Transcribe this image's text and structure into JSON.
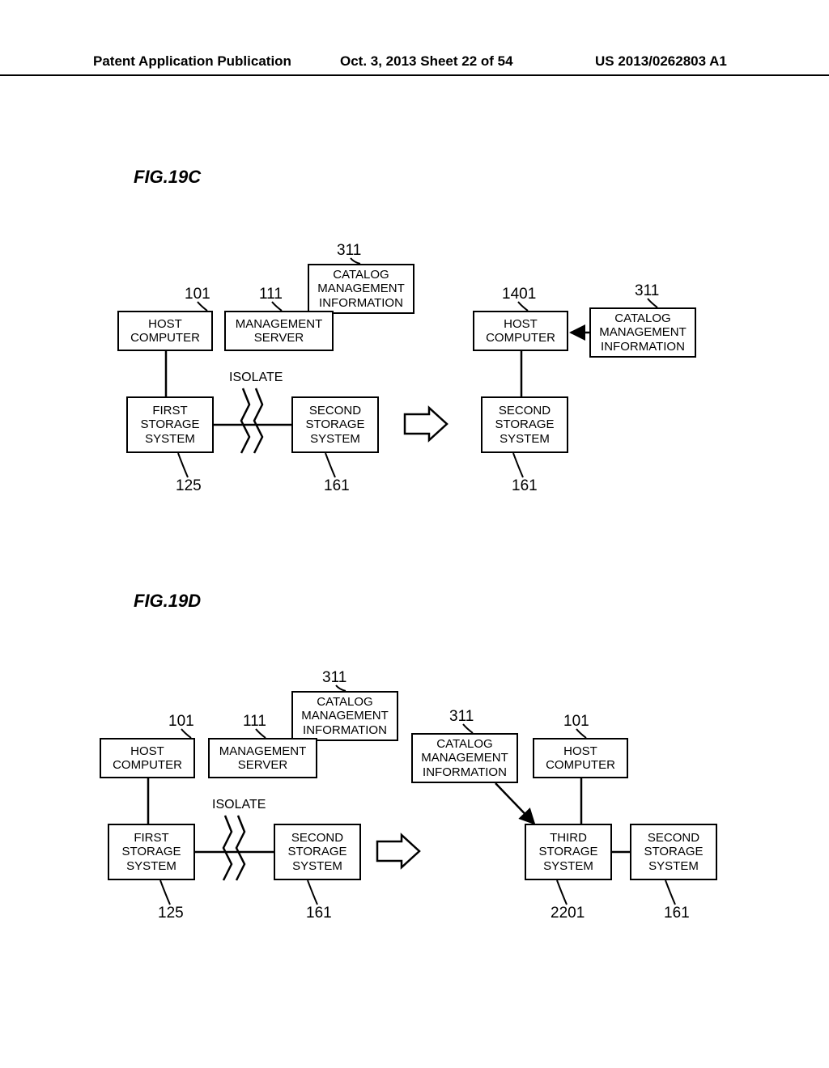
{
  "header": {
    "left": "Patent Application Publication",
    "center": "Oct. 3, 2013  Sheet 22 of 54",
    "right": "US 2013/0262803 A1"
  },
  "fig19c": {
    "title": "FIG.19C",
    "isolate_label": "ISOLATE",
    "boxes": {
      "host_l": "HOST\nCOMPUTER",
      "mgmt_server": "MANAGEMENT\nSERVER",
      "catalog_l": "CATALOG\nMANAGEMENT\nINFORMATION",
      "first_storage": "FIRST\nSTORAGE\nSYSTEM",
      "second_storage_l": "SECOND\nSTORAGE\nSYSTEM",
      "host_r": "HOST\nCOMPUTER",
      "catalog_r": "CATALOG\nMANAGEMENT\nINFORMATION",
      "second_storage_r": "SECOND\nSTORAGE\nSYSTEM"
    },
    "refs": {
      "r101": "101",
      "r111": "111",
      "r311l": "311",
      "r1401": "1401",
      "r311r": "311",
      "r125": "125",
      "r161l": "161",
      "r161r": "161"
    }
  },
  "fig19d": {
    "title": "FIG.19D",
    "isolate_label": "ISOLATE",
    "boxes": {
      "host_l": "HOST\nCOMPUTER",
      "mgmt_server": "MANAGEMENT\nSERVER",
      "catalog_l": "CATALOG\nMANAGEMENT\nINFORMATION",
      "first_storage": "FIRST\nSTORAGE\nSYSTEM",
      "second_storage_l": "SECOND\nSTORAGE\nSYSTEM",
      "catalog_r": "CATALOG\nMANAGEMENT\nINFORMATION",
      "host_r": "HOST\nCOMPUTER",
      "third_storage": "THIRD\nSTORAGE\nSYSTEM",
      "second_storage_r": "SECOND\nSTORAGE\nSYSTEM"
    },
    "refs": {
      "r101l": "101",
      "r111": "111",
      "r311l": "311",
      "r311r": "311",
      "r101r": "101",
      "r125": "125",
      "r161l": "161",
      "r2201": "2201",
      "r161r": "161"
    }
  },
  "style": {
    "stroke": "#000000",
    "stroke_width": 2.5,
    "font_color": "#000000",
    "background": "#ffffff",
    "box_fontsize": 15,
    "ref_fontsize": 19,
    "title_fontsize": 22
  }
}
